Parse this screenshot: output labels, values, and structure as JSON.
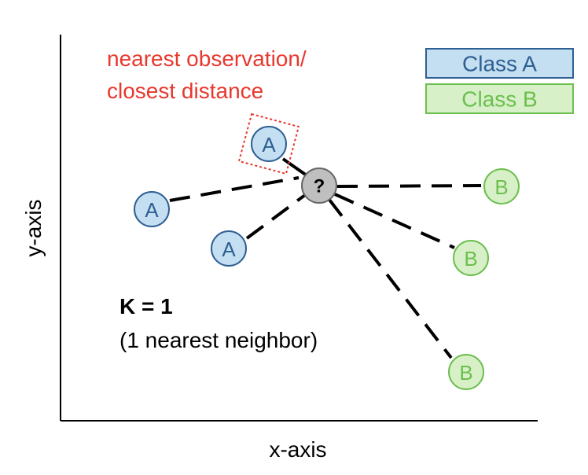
{
  "axes": {
    "x_label": "x-axis",
    "y_label": "y-axis"
  },
  "annotation": {
    "line1": "nearest observation/",
    "line2": "closest distance"
  },
  "k_text": {
    "line1": "K = 1",
    "line2": "(1 nearest neighbor)"
  },
  "legend": {
    "class_a": "Class A",
    "class_b": "Class B"
  },
  "query": {
    "label": "?"
  },
  "points": [
    {
      "label": "A",
      "class": "A",
      "nearest": true
    },
    {
      "label": "A",
      "class": "A",
      "nearest": false
    },
    {
      "label": "A",
      "class": "A",
      "nearest": false
    },
    {
      "label": "B",
      "class": "B",
      "nearest": false
    },
    {
      "label": "B",
      "class": "B",
      "nearest": false
    },
    {
      "label": "B",
      "class": "B",
      "nearest": false
    }
  ],
  "colors": {
    "class_a_fill": "#c5dff2",
    "class_a_stroke": "#2e5f92",
    "class_b_fill": "#d8f0c8",
    "class_b_stroke": "#6cbf4f",
    "query_fill": "#bfbfbf",
    "query_stroke": "#666666",
    "annotation": "#e8382e"
  }
}
